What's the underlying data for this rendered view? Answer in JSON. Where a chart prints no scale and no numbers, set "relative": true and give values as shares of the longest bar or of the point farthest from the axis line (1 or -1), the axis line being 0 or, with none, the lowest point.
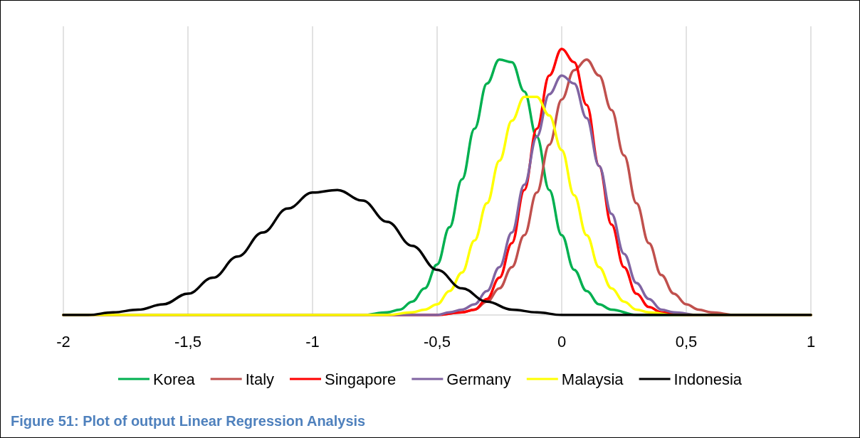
{
  "chart_data": {
    "type": "line",
    "relative": true,
    "xlim": [
      -2,
      1
    ],
    "xticks": [
      -2,
      {
        "value": -1.5,
        "label": "-1,5"
      },
      -1,
      {
        "value": -0.5,
        "label": "-0,5"
      },
      0,
      {
        "value": 0.5,
        "label": "0,5"
      },
      1
    ],
    "grid": "x",
    "legend": "bottom",
    "line_style": "solid",
    "annotations": [
      "Figure 51: Plot of output Linear Regression Analysis"
    ],
    "series": [
      {
        "name": "Korea",
        "color": "#00b050",
        "x": [
          -2,
          -0.8,
          -0.7,
          -0.65,
          -0.6,
          -0.55,
          -0.5,
          -0.45,
          -0.4,
          -0.35,
          -0.3,
          -0.25,
          -0.2,
          -0.15,
          -0.1,
          -0.05,
          0,
          0.05,
          0.1,
          0.15,
          0.2,
          0.3,
          1
        ],
        "values": [
          0,
          0,
          0.01,
          0.02,
          0.05,
          0.1,
          0.19,
          0.33,
          0.51,
          0.7,
          0.87,
          0.96,
          0.95,
          0.84,
          0.67,
          0.47,
          0.3,
          0.17,
          0.09,
          0.04,
          0.02,
          0,
          0
        ]
      },
      {
        "name": "Italy",
        "color": "#c0504d",
        "x": [
          -2,
          -0.5,
          -0.4,
          -0.35,
          -0.3,
          -0.25,
          -0.2,
          -0.15,
          -0.1,
          -0.05,
          0,
          0.05,
          0.1,
          0.15,
          0.2,
          0.25,
          0.3,
          0.35,
          0.4,
          0.45,
          0.5,
          0.55,
          0.6,
          0.7,
          1
        ],
        "values": [
          0,
          0,
          0.01,
          0.02,
          0.05,
          0.1,
          0.18,
          0.3,
          0.46,
          0.64,
          0.81,
          0.92,
          0.96,
          0.9,
          0.77,
          0.6,
          0.42,
          0.27,
          0.15,
          0.08,
          0.04,
          0.02,
          0.01,
          0,
          0
        ]
      },
      {
        "name": "Singapore",
        "color": "#ff0000",
        "x": [
          -2,
          -0.5,
          -0.4,
          -0.35,
          -0.3,
          -0.25,
          -0.2,
          -0.15,
          -0.1,
          -0.05,
          0,
          0.05,
          0.1,
          0.15,
          0.2,
          0.25,
          0.3,
          0.35,
          0.4,
          0.5,
          1
        ],
        "values": [
          0,
          0,
          0.01,
          0.02,
          0.06,
          0.14,
          0.27,
          0.47,
          0.7,
          0.9,
          1,
          0.95,
          0.79,
          0.56,
          0.34,
          0.18,
          0.08,
          0.03,
          0.01,
          0,
          0
        ]
      },
      {
        "name": "Germany",
        "color": "#8064a2",
        "x": [
          -2,
          -0.5,
          -0.45,
          -0.4,
          -0.35,
          -0.3,
          -0.25,
          -0.2,
          -0.15,
          -0.1,
          -0.05,
          0,
          0.05,
          0.1,
          0.15,
          0.2,
          0.25,
          0.3,
          0.35,
          0.4,
          0.45,
          0.55,
          1
        ],
        "values": [
          0,
          0,
          0.01,
          0.02,
          0.04,
          0.09,
          0.18,
          0.31,
          0.49,
          0.67,
          0.83,
          0.9,
          0.87,
          0.74,
          0.56,
          0.38,
          0.23,
          0.12,
          0.06,
          0.02,
          0.01,
          0,
          0
        ]
      },
      {
        "name": "Malaysia",
        "color": "#ffff00",
        "x": [
          -2,
          -0.7,
          -0.6,
          -0.55,
          -0.5,
          -0.45,
          -0.4,
          -0.35,
          -0.3,
          -0.25,
          -0.2,
          -0.15,
          -0.1,
          -0.05,
          0,
          0.05,
          0.1,
          0.15,
          0.2,
          0.25,
          0.3,
          0.35,
          0.45,
          1
        ],
        "values": [
          0,
          0,
          0.01,
          0.02,
          0.04,
          0.09,
          0.16,
          0.28,
          0.42,
          0.58,
          0.73,
          0.82,
          0.82,
          0.75,
          0.62,
          0.45,
          0.3,
          0.18,
          0.1,
          0.05,
          0.02,
          0.01,
          0,
          0
        ]
      },
      {
        "name": "Indonesia",
        "color": "#000000",
        "x": [
          -2,
          -1.9,
          -1.8,
          -1.7,
          -1.6,
          -1.5,
          -1.4,
          -1.3,
          -1.2,
          -1.1,
          -1.0,
          -0.9,
          -0.8,
          -0.7,
          -0.6,
          -0.5,
          -0.4,
          -0.3,
          -0.2,
          -0.1,
          0,
          0.2,
          1
        ],
        "values": [
          0,
          0,
          0.01,
          0.02,
          0.04,
          0.08,
          0.14,
          0.22,
          0.31,
          0.4,
          0.46,
          0.47,
          0.43,
          0.35,
          0.26,
          0.17,
          0.1,
          0.05,
          0.02,
          0.01,
          0,
          0,
          0
        ]
      }
    ]
  }
}
